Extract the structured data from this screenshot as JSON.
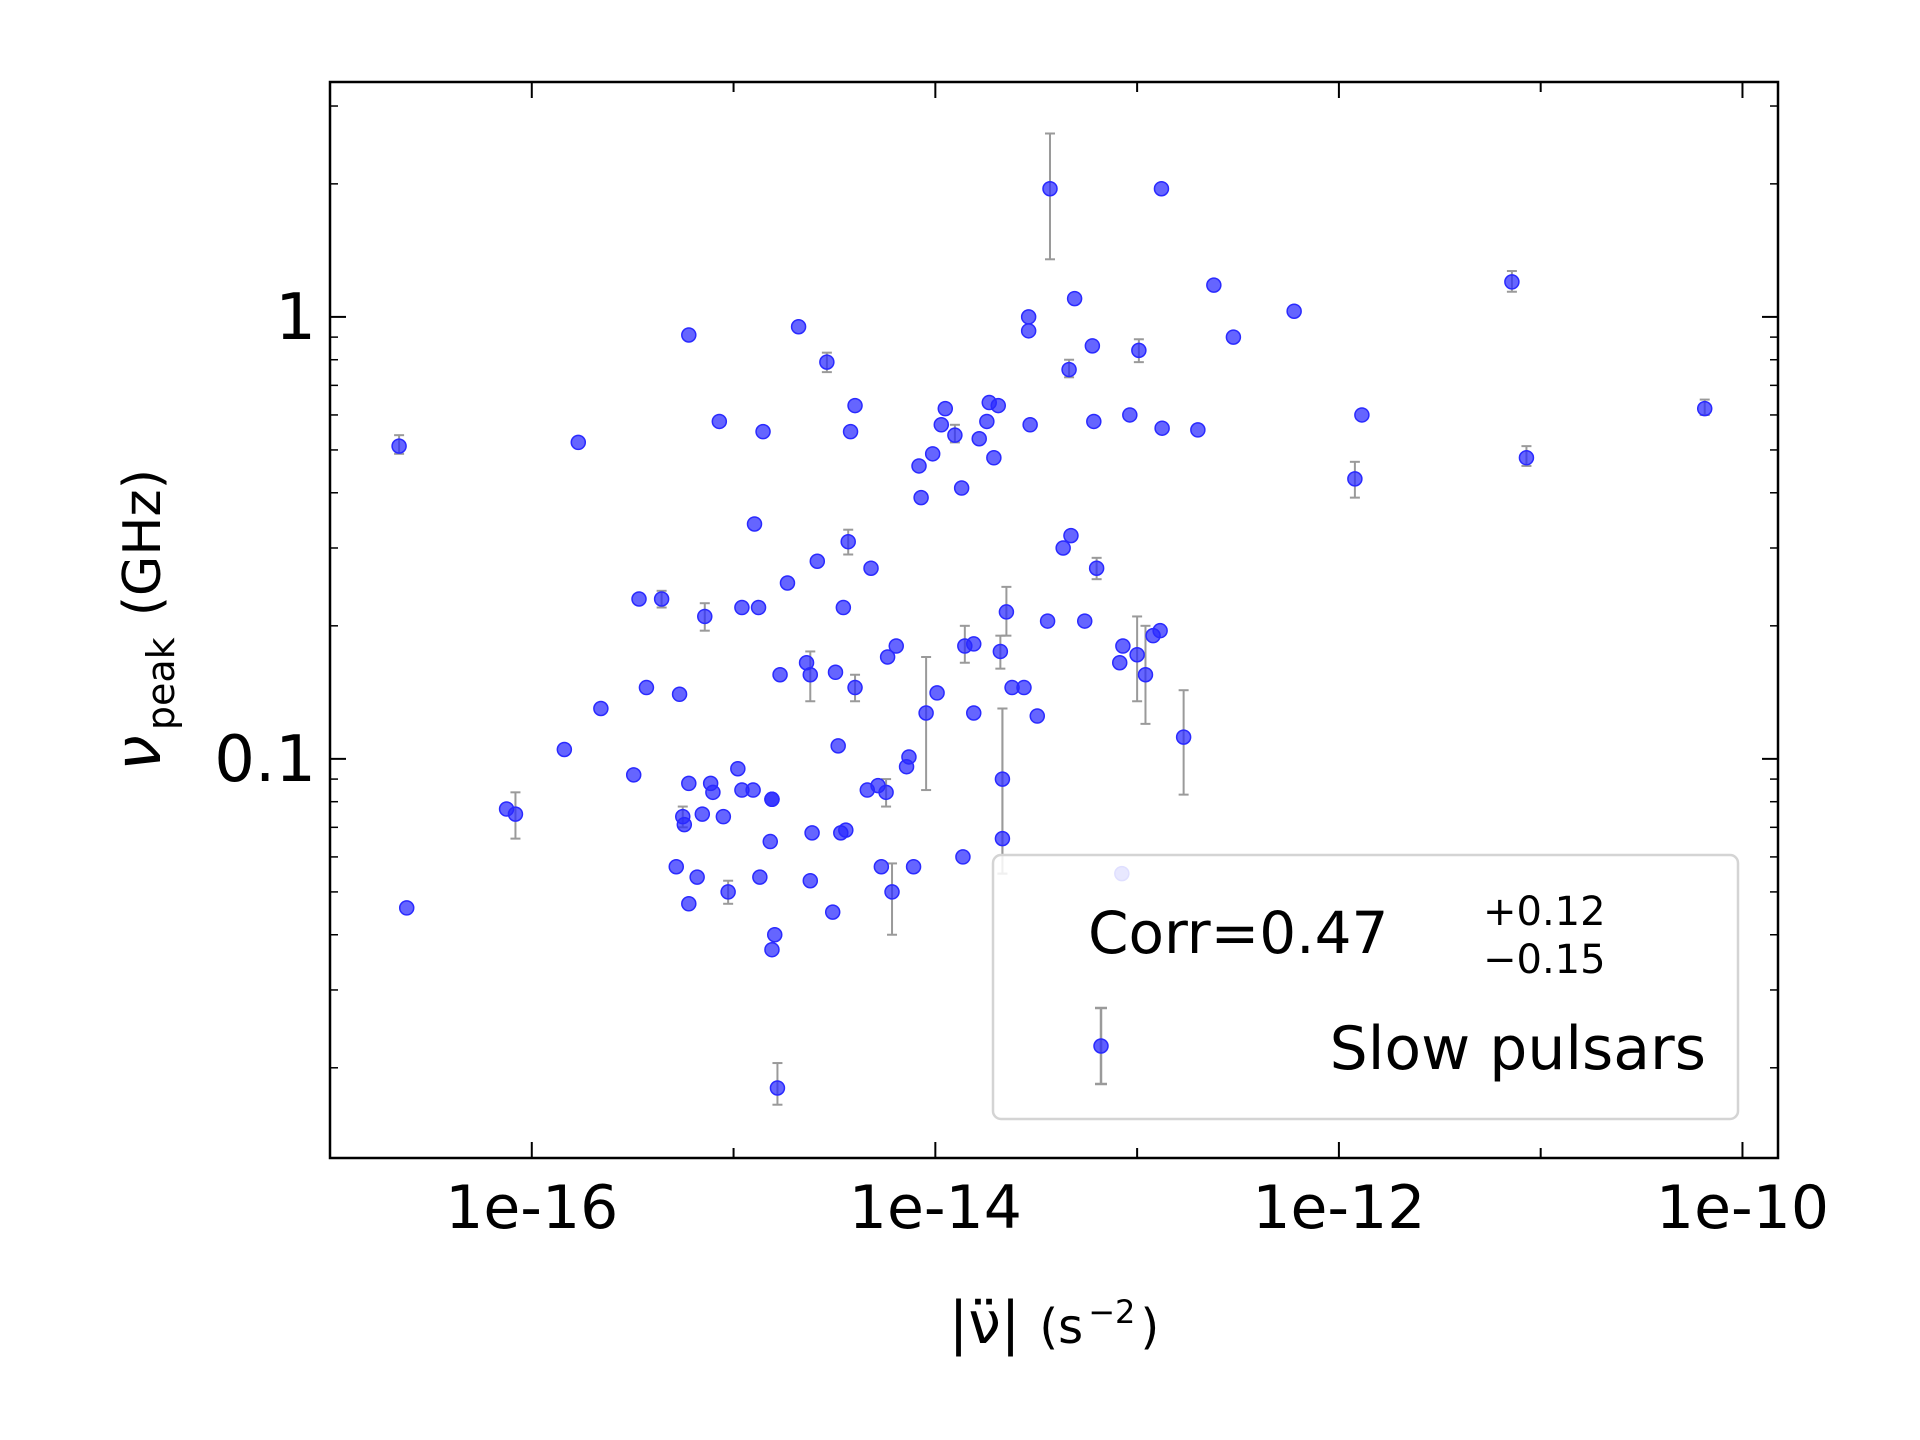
{
  "chart_data": {
    "type": "scatter",
    "title": "",
    "xlabel": {
      "main": "|ν̈|",
      "unit": "(s",
      "exp": "−2",
      "close": ")"
    },
    "ylabel": {
      "sym": "ν",
      "sub": "peak",
      "unit": "(GHz)"
    },
    "xscale": "log",
    "yscale": "log",
    "xlim": [
      1e-17,
      1.5e-10
    ],
    "ylim": [
      0.0125,
      3.4
    ],
    "xticks": [
      {
        "value": 1e-16,
        "label": "1e-16"
      },
      {
        "value": 1e-14,
        "label": "1e-14"
      },
      {
        "value": 1e-12,
        "label": "1e-12"
      },
      {
        "value": 1e-10,
        "label": "1e-10"
      }
    ],
    "yticks": [
      {
        "value": 0.1,
        "label": "0.1"
      },
      {
        "value": 1,
        "label": "1"
      }
    ],
    "grid": false,
    "legend": {
      "placement": "lower-right",
      "corr_prefix": "Corr=0.47",
      "corr_plus": "+0.12",
      "corr_minus": "−0.15",
      "entry": "Slow pulsars"
    },
    "colors": {
      "points": "#2a2aff",
      "errorbars": "#9a9a9a"
    },
    "series": [
      {
        "name": "Slow pulsars",
        "points": [
          {
            "x": 2.2e-17,
            "y": 0.51,
            "lo": 0.49,
            "hi": 0.54
          },
          {
            "x": 2.4e-17,
            "y": 0.046
          },
          {
            "x": 7.5e-17,
            "y": 0.077
          },
          {
            "x": 8.3e-17,
            "y": 0.075,
            "lo": 0.066,
            "hi": 0.084
          },
          {
            "x": 1.45e-16,
            "y": 0.105
          },
          {
            "x": 1.7e-16,
            "y": 0.52
          },
          {
            "x": 2.2e-16,
            "y": 0.13
          },
          {
            "x": 3.2e-16,
            "y": 0.092
          },
          {
            "x": 3.4e-16,
            "y": 0.23
          },
          {
            "x": 3.7e-16,
            "y": 0.145
          },
          {
            "x": 4.4e-16,
            "y": 0.23,
            "lo": 0.22,
            "hi": 0.24
          },
          {
            "x": 5.2e-16,
            "y": 0.057
          },
          {
            "x": 5.4e-16,
            "y": 0.14
          },
          {
            "x": 5.6e-16,
            "y": 0.074,
            "lo": 0.07,
            "hi": 0.078
          },
          {
            "x": 5.7e-16,
            "y": 0.071
          },
          {
            "x": 6e-16,
            "y": 0.088
          },
          {
            "x": 6e-16,
            "y": 0.047
          },
          {
            "x": 6e-16,
            "y": 0.91
          },
          {
            "x": 6.6e-16,
            "y": 0.054
          },
          {
            "x": 7e-16,
            "y": 0.075
          },
          {
            "x": 7.2e-16,
            "y": 0.21,
            "lo": 0.195,
            "hi": 0.225
          },
          {
            "x": 7.7e-16,
            "y": 0.088
          },
          {
            "x": 7.9e-16,
            "y": 0.084
          },
          {
            "x": 8.5e-16,
            "y": 0.58
          },
          {
            "x": 8.9e-16,
            "y": 0.074
          },
          {
            "x": 9.4e-16,
            "y": 0.05,
            "lo": 0.047,
            "hi": 0.053
          },
          {
            "x": 1.05e-15,
            "y": 0.095
          },
          {
            "x": 1.1e-15,
            "y": 0.22
          },
          {
            "x": 1.1e-15,
            "y": 0.085
          },
          {
            "x": 1.25e-15,
            "y": 0.085
          },
          {
            "x": 1.27e-15,
            "y": 0.34
          },
          {
            "x": 1.33e-15,
            "y": 0.22
          },
          {
            "x": 1.35e-15,
            "y": 0.054
          },
          {
            "x": 1.4e-15,
            "y": 0.55
          },
          {
            "x": 1.52e-15,
            "y": 0.065
          },
          {
            "x": 1.55e-15,
            "y": 0.081
          },
          {
            "x": 1.55e-15,
            "y": 0.081
          },
          {
            "x": 1.55e-15,
            "y": 0.037
          },
          {
            "x": 1.6e-15,
            "y": 0.04
          },
          {
            "x": 1.65e-15,
            "y": 0.018,
            "lo": 0.0165,
            "hi": 0.0205
          },
          {
            "x": 1.7e-15,
            "y": 0.155
          },
          {
            "x": 1.85e-15,
            "y": 0.25
          },
          {
            "x": 2.1e-15,
            "y": 0.95
          },
          {
            "x": 2.3e-15,
            "y": 0.165
          },
          {
            "x": 2.4e-15,
            "y": 0.155,
            "lo": 0.135,
            "hi": 0.175
          },
          {
            "x": 2.4e-15,
            "y": 0.053
          },
          {
            "x": 2.45e-15,
            "y": 0.068
          },
          {
            "x": 2.6e-15,
            "y": 0.28
          },
          {
            "x": 2.9e-15,
            "y": 0.79,
            "lo": 0.75,
            "hi": 0.83
          },
          {
            "x": 3.1e-15,
            "y": 0.045
          },
          {
            "x": 3.2e-15,
            "y": 0.157
          },
          {
            "x": 3.3e-15,
            "y": 0.107
          },
          {
            "x": 3.4e-15,
            "y": 0.068
          },
          {
            "x": 3.5e-15,
            "y": 0.22
          },
          {
            "x": 3.6e-15,
            "y": 0.069
          },
          {
            "x": 3.7e-15,
            "y": 0.31,
            "lo": 0.29,
            "hi": 0.33
          },
          {
            "x": 3.8e-15,
            "y": 0.55
          },
          {
            "x": 4e-15,
            "y": 0.145,
            "lo": 0.135,
            "hi": 0.155
          },
          {
            "x": 4e-15,
            "y": 0.63
          },
          {
            "x": 4.6e-15,
            "y": 0.085
          },
          {
            "x": 4.8e-15,
            "y": 0.27
          },
          {
            "x": 5.2e-15,
            "y": 0.087
          },
          {
            "x": 5.4e-15,
            "y": 0.057
          },
          {
            "x": 5.7e-15,
            "y": 0.084,
            "lo": 0.078,
            "hi": 0.09
          },
          {
            "x": 5.8e-15,
            "y": 0.17
          },
          {
            "x": 6.1e-15,
            "y": 0.05,
            "lo": 0.04,
            "hi": 0.058
          },
          {
            "x": 6.4e-15,
            "y": 0.18
          },
          {
            "x": 7.2e-15,
            "y": 0.096
          },
          {
            "x": 7.4e-15,
            "y": 0.101
          },
          {
            "x": 7.8e-15,
            "y": 0.057
          },
          {
            "x": 8.3e-15,
            "y": 0.46
          },
          {
            "x": 8.5e-15,
            "y": 0.39
          },
          {
            "x": 9e-15,
            "y": 0.127,
            "lo": 0.085,
            "hi": 0.17
          },
          {
            "x": 9.7e-15,
            "y": 0.49
          },
          {
            "x": 1.02e-14,
            "y": 0.141
          },
          {
            "x": 1.07e-14,
            "y": 0.57
          },
          {
            "x": 1.12e-14,
            "y": 0.62
          },
          {
            "x": 1.25e-14,
            "y": 0.54,
            "lo": 0.52,
            "hi": 0.57
          },
          {
            "x": 1.35e-14,
            "y": 0.41
          },
          {
            "x": 1.37e-14,
            "y": 0.06
          },
          {
            "x": 1.4e-14,
            "y": 0.18,
            "lo": 0.165,
            "hi": 0.2
          },
          {
            "x": 1.55e-14,
            "y": 0.182
          },
          {
            "x": 1.55e-14,
            "y": 0.127
          },
          {
            "x": 1.65e-14,
            "y": 0.53
          },
          {
            "x": 1.8e-14,
            "y": 0.58
          },
          {
            "x": 1.85e-14,
            "y": 0.64
          },
          {
            "x": 1.95e-14,
            "y": 0.48
          },
          {
            "x": 2.05e-14,
            "y": 0.63
          },
          {
            "x": 2.1e-14,
            "y": 0.175,
            "lo": 0.16,
            "hi": 0.19
          },
          {
            "x": 2.15e-14,
            "y": 0.066,
            "lo": 0.055,
            "hi": 0.13
          },
          {
            "x": 2.15e-14,
            "y": 0.09,
            "lo": 0.055,
            "hi": 0.13
          },
          {
            "x": 2.25e-14,
            "y": 0.215,
            "lo": 0.19,
            "hi": 0.245
          },
          {
            "x": 2.4e-14,
            "y": 0.145
          },
          {
            "x": 2.75e-14,
            "y": 0.145
          },
          {
            "x": 2.9e-14,
            "y": 1.0
          },
          {
            "x": 2.9e-14,
            "y": 0.93
          },
          {
            "x": 2.95e-14,
            "y": 0.57
          },
          {
            "x": 3.2e-14,
            "y": 0.125
          },
          {
            "x": 3.6e-14,
            "y": 0.205
          },
          {
            "x": 3.7e-14,
            "y": 1.95,
            "lo": 1.35,
            "hi": 2.6
          },
          {
            "x": 4.3e-14,
            "y": 0.3
          },
          {
            "x": 4.6e-14,
            "y": 0.76,
            "lo": 0.73,
            "hi": 0.8
          },
          {
            "x": 4.7e-14,
            "y": 0.32
          },
          {
            "x": 4.9e-14,
            "y": 1.1
          },
          {
            "x": 5.5e-14,
            "y": 0.205
          },
          {
            "x": 6e-14,
            "y": 0.86
          },
          {
            "x": 6.1e-14,
            "y": 0.58
          },
          {
            "x": 6.3e-14,
            "y": 0.27,
            "lo": 0.255,
            "hi": 0.285
          },
          {
            "x": 8.2e-14,
            "y": 0.165
          },
          {
            "x": 8.4e-14,
            "y": 0.055
          },
          {
            "x": 8.5e-14,
            "y": 0.18
          },
          {
            "x": 9.2e-14,
            "y": 0.6
          },
          {
            "x": 1e-13,
            "y": 0.172,
            "lo": 0.135,
            "hi": 0.21
          },
          {
            "x": 1.02e-13,
            "y": 0.84,
            "lo": 0.79,
            "hi": 0.89
          },
          {
            "x": 1.1e-13,
            "y": 0.155,
            "lo": 0.12,
            "hi": 0.2
          },
          {
            "x": 1.2e-13,
            "y": 0.19
          },
          {
            "x": 1.3e-13,
            "y": 0.195
          },
          {
            "x": 1.32e-13,
            "y": 1.95
          },
          {
            "x": 1.33e-13,
            "y": 0.56
          },
          {
            "x": 1.7e-13,
            "y": 0.112,
            "lo": 0.083,
            "hi": 0.143
          },
          {
            "x": 2e-13,
            "y": 0.555
          },
          {
            "x": 2.4e-13,
            "y": 1.18
          },
          {
            "x": 3e-13,
            "y": 0.9
          },
          {
            "x": 6e-13,
            "y": 1.03
          },
          {
            "x": 1.2e-12,
            "y": 0.43,
            "lo": 0.39,
            "hi": 0.47
          },
          {
            "x": 1.3e-12,
            "y": 0.6
          },
          {
            "x": 7.2e-12,
            "y": 1.2,
            "lo": 1.14,
            "hi": 1.27
          },
          {
            "x": 8.5e-12,
            "y": 0.48,
            "lo": 0.46,
            "hi": 0.51
          },
          {
            "x": 6.5e-11,
            "y": 0.62,
            "lo": 0.6,
            "hi": 0.65
          }
        ]
      }
    ]
  }
}
